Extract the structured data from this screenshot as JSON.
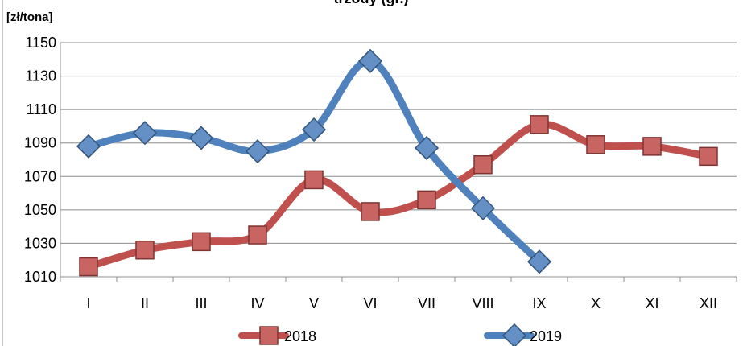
{
  "chart_data": {
    "type": "line",
    "title": "trzody (gr.)",
    "unit_label": "[zł/tona]",
    "categories": [
      "I",
      "II",
      "III",
      "IV",
      "V",
      "VI",
      "VII",
      "VIII",
      "IX",
      "X",
      "XI",
      "XII"
    ],
    "ylim": [
      1010,
      1150
    ],
    "yticks": [
      1010,
      1030,
      1050,
      1070,
      1090,
      1110,
      1130,
      1150
    ],
    "grid": true,
    "smooth": true,
    "legend_position": "bottom",
    "series": [
      {
        "name": "2018",
        "color": "#c0504d",
        "marker": "square",
        "values": [
          1016,
          1026,
          1031,
          1035,
          1068,
          1049,
          1056,
          1077,
          1101,
          1089,
          1088,
          1082
        ]
      },
      {
        "name": "2019",
        "color": "#4f81bd",
        "marker": "diamond",
        "values": [
          1088,
          1096,
          1093,
          1085,
          1098,
          1139,
          1087,
          1051,
          1019,
          null,
          null,
          null
        ]
      }
    ]
  }
}
